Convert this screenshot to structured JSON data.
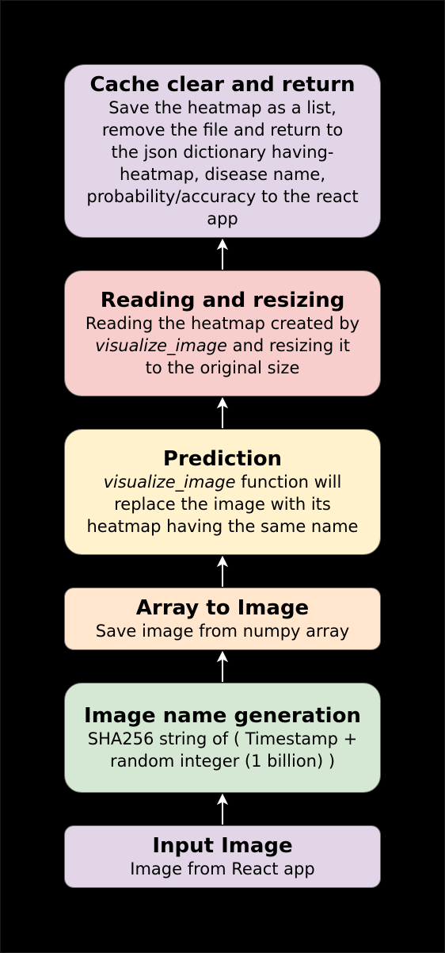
{
  "steps": {
    "cache": {
      "title": "Cache clear and return",
      "desc": "Save the heatmap as a list,\nremove the file and return to\nthe json dictionary having-\nheatmap, disease name,\nprobability/accuracy to the react\napp"
    },
    "reading": {
      "title": "Reading and resizing",
      "desc_line1": "Reading the heatmap created by",
      "desc_italic": "visualize_image",
      "desc_line2_rest": " and resizing it",
      "desc_line3": "to the original size"
    },
    "prediction": {
      "title": "Prediction",
      "desc_italic": "visualize_image",
      "desc_line1_rest": " function will",
      "desc_line2": "replace the image with its",
      "desc_line3": "heatmap having the same name"
    },
    "array": {
      "title": "Array to Image",
      "desc": "Save image from numpy array"
    },
    "name": {
      "title": "Image name generation",
      "desc": "SHA256 string of ( Timestamp +\nrandom integer (1 billion) )"
    },
    "input": {
      "title": "Input Image",
      "desc": "Image from React app"
    }
  },
  "colors": {
    "background": "#000000",
    "purple_box": "#e1d5e7",
    "red_box": "#f8cecc",
    "yellow_box": "#fff2cc",
    "orange_box": "#ffe6cc",
    "green_box": "#d5e8d4",
    "arrow": "#ffffff"
  }
}
